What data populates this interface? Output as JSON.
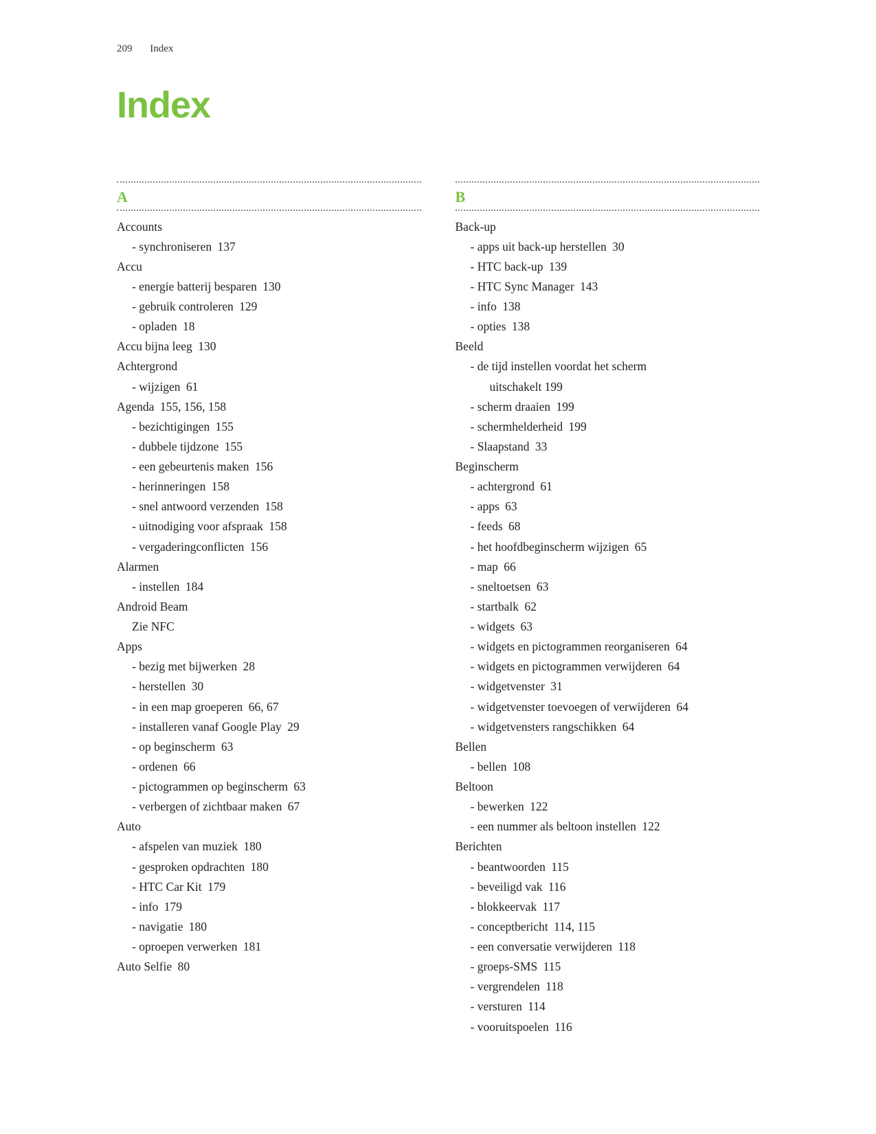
{
  "header": {
    "page_number": "209",
    "section": "Index"
  },
  "title": "Index",
  "title_color": "#7cc242",
  "letter_color": "#7cc242",
  "columns": [
    {
      "letter": "A",
      "entries": [
        {
          "level": 0,
          "text": "Accounts",
          "pages": ""
        },
        {
          "level": 1,
          "text": "synchroniseren",
          "pages": "137"
        },
        {
          "level": 0,
          "text": "Accu",
          "pages": ""
        },
        {
          "level": 1,
          "text": "energie batterij besparen",
          "pages": "130"
        },
        {
          "level": 1,
          "text": "gebruik controleren",
          "pages": "129"
        },
        {
          "level": 1,
          "text": "opladen",
          "pages": "18"
        },
        {
          "level": 0,
          "text": "Accu bijna leeg",
          "pages": "130"
        },
        {
          "level": 0,
          "text": "Achtergrond",
          "pages": ""
        },
        {
          "level": 1,
          "text": "wijzigen",
          "pages": "61"
        },
        {
          "level": 0,
          "text": "Agenda",
          "pages": "155, 156, 158"
        },
        {
          "level": 1,
          "text": "bezichtigingen",
          "pages": "155"
        },
        {
          "level": 1,
          "text": "dubbele tijdzone",
          "pages": "155"
        },
        {
          "level": 1,
          "text": "een gebeurtenis maken",
          "pages": "156"
        },
        {
          "level": 1,
          "text": "herinneringen",
          "pages": "158"
        },
        {
          "level": 1,
          "text": "snel antwoord verzenden",
          "pages": "158"
        },
        {
          "level": 1,
          "text": "uitnodiging voor afspraak",
          "pages": "158"
        },
        {
          "level": 1,
          "text": "vergaderingconflicten",
          "pages": "156"
        },
        {
          "level": 0,
          "text": "Alarmen",
          "pages": ""
        },
        {
          "level": 1,
          "text": "instellen",
          "pages": "184"
        },
        {
          "level": 0,
          "text": "Android Beam",
          "pages": ""
        },
        {
          "level": 2,
          "text": "Zie NFC",
          "pages": ""
        },
        {
          "level": 0,
          "text": "Apps",
          "pages": ""
        },
        {
          "level": 1,
          "text": "bezig met bijwerken",
          "pages": "28"
        },
        {
          "level": 1,
          "text": "herstellen",
          "pages": "30"
        },
        {
          "level": 1,
          "text": "in een map groeperen",
          "pages": "66, 67"
        },
        {
          "level": 1,
          "text": "installeren vanaf Google Play",
          "pages": "29"
        },
        {
          "level": 1,
          "text": "op beginscherm",
          "pages": "63"
        },
        {
          "level": 1,
          "text": "ordenen",
          "pages": "66"
        },
        {
          "level": 1,
          "text": "pictogrammen op beginscherm",
          "pages": "63"
        },
        {
          "level": 1,
          "text": "verbergen of zichtbaar maken",
          "pages": "67"
        },
        {
          "level": 0,
          "text": "Auto",
          "pages": ""
        },
        {
          "level": 1,
          "text": "afspelen van muziek",
          "pages": "180"
        },
        {
          "level": 1,
          "text": "gesproken opdrachten",
          "pages": "180"
        },
        {
          "level": 1,
          "text": "HTC Car Kit",
          "pages": "179"
        },
        {
          "level": 1,
          "text": "info",
          "pages": "179"
        },
        {
          "level": 1,
          "text": "navigatie",
          "pages": "180"
        },
        {
          "level": 1,
          "text": "oproepen verwerken",
          "pages": "181"
        },
        {
          "level": 0,
          "text": "Auto Selfie",
          "pages": "80"
        }
      ]
    },
    {
      "letter": "B",
      "entries": [
        {
          "level": 0,
          "text": "Back-up",
          "pages": ""
        },
        {
          "level": 1,
          "text": "apps uit back-up herstellen",
          "pages": "30"
        },
        {
          "level": 1,
          "text": "HTC back-up",
          "pages": "139"
        },
        {
          "level": 1,
          "text": "HTC Sync Manager",
          "pages": "143"
        },
        {
          "level": 1,
          "text": "info",
          "pages": "138"
        },
        {
          "level": 1,
          "text": "opties",
          "pages": "138"
        },
        {
          "level": 0,
          "text": "Beeld",
          "pages": ""
        },
        {
          "level": 1,
          "text": "de tijd instellen voordat het scherm",
          "pages": "",
          "cont": "uitschakelt 199"
        },
        {
          "level": 1,
          "text": "scherm draaien",
          "pages": "199"
        },
        {
          "level": 1,
          "text": "schermhelderheid",
          "pages": "199"
        },
        {
          "level": 1,
          "text": "Slaapstand",
          "pages": "33"
        },
        {
          "level": 0,
          "text": "Beginscherm",
          "pages": ""
        },
        {
          "level": 1,
          "text": "achtergrond",
          "pages": "61"
        },
        {
          "level": 1,
          "text": "apps",
          "pages": "63"
        },
        {
          "level": 1,
          "text": "feeds",
          "pages": "68"
        },
        {
          "level": 1,
          "text": "het hoofdbeginscherm wijzigen",
          "pages": "65"
        },
        {
          "level": 1,
          "text": "map",
          "pages": "66"
        },
        {
          "level": 1,
          "text": "sneltoetsen",
          "pages": "63"
        },
        {
          "level": 1,
          "text": "startbalk",
          "pages": "62"
        },
        {
          "level": 1,
          "text": "widgets",
          "pages": "63"
        },
        {
          "level": 1,
          "text": "widgets en pictogrammen reorganiseren",
          "pages": "64"
        },
        {
          "level": 1,
          "text": "widgets en pictogrammen verwijderen",
          "pages": "64"
        },
        {
          "level": 1,
          "text": "widgetvenster",
          "pages": "31"
        },
        {
          "level": 1,
          "text": "widgetvenster toevoegen of verwijderen",
          "pages": "64"
        },
        {
          "level": 1,
          "text": "widgetvensters rangschikken",
          "pages": "64"
        },
        {
          "level": 0,
          "text": "Bellen",
          "pages": ""
        },
        {
          "level": 1,
          "text": "bellen",
          "pages": "108"
        },
        {
          "level": 0,
          "text": "Beltoon",
          "pages": ""
        },
        {
          "level": 1,
          "text": "bewerken",
          "pages": "122"
        },
        {
          "level": 1,
          "text": "een nummer als beltoon instellen",
          "pages": "122"
        },
        {
          "level": 0,
          "text": "Berichten",
          "pages": ""
        },
        {
          "level": 1,
          "text": "beantwoorden",
          "pages": "115"
        },
        {
          "level": 1,
          "text": "beveiligd vak",
          "pages": "116"
        },
        {
          "level": 1,
          "text": "blokkeervak",
          "pages": "117"
        },
        {
          "level": 1,
          "text": "conceptbericht",
          "pages": "114, 115"
        },
        {
          "level": 1,
          "text": "een conversatie verwijderen",
          "pages": "118"
        },
        {
          "level": 1,
          "text": "groeps-SMS",
          "pages": "115"
        },
        {
          "level": 1,
          "text": "vergrendelen",
          "pages": "118"
        },
        {
          "level": 1,
          "text": "versturen",
          "pages": "114"
        },
        {
          "level": 1,
          "text": "vooruitspoelen",
          "pages": "116"
        }
      ]
    }
  ]
}
